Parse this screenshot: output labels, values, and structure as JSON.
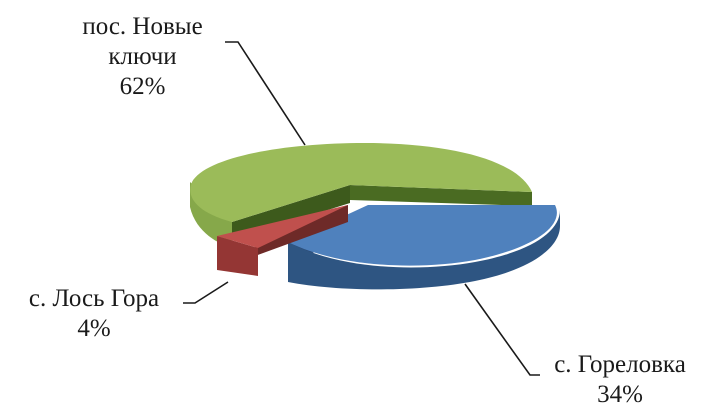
{
  "chart_data": {
    "type": "pie",
    "style": "3d-exploded",
    "slices": [
      {
        "label": "пос. Новые ключи",
        "label_lines": [
          "пос. Новые",
          "ключи"
        ],
        "value": 62,
        "percent_label": "62%",
        "color": "#9bbb59"
      },
      {
        "label": "с. Гореловка",
        "label_lines": [
          "с. Гореловка"
        ],
        "value": 34,
        "percent_label": "34%",
        "color": "#4f81bd"
      },
      {
        "label": "с. Лось Гора",
        "label_lines": [
          "с. Лось Гора"
        ],
        "value": 4,
        "percent_label": "4%",
        "color": "#c0504d"
      }
    ]
  }
}
